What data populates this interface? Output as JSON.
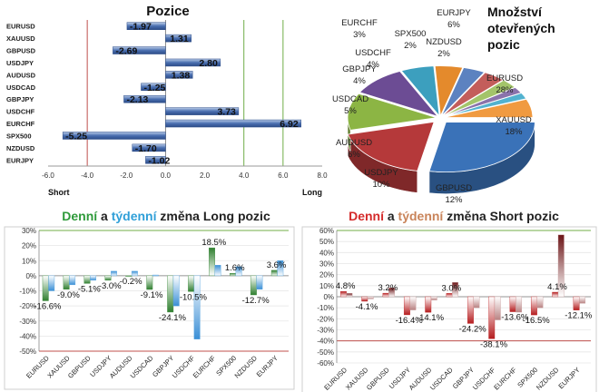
{
  "chart_data": [
    {
      "type": "bar",
      "orientation": "horizontal",
      "title": "Pozice",
      "categories": [
        "EURUSD",
        "XAUUSD",
        "GBPUSD",
        "USDJPY",
        "AUDUSD",
        "USDCAD",
        "GBPJPY",
        "USDCHF",
        "EURCHF",
        "SPX500",
        "NZDUSD",
        "EURJPY"
      ],
      "values": [
        -1.97,
        1.31,
        -2.69,
        2.8,
        1.38,
        -1.25,
        -2.13,
        3.73,
        6.92,
        -5.25,
        -1.7,
        -1.02
      ],
      "value_labels": [
        "-1.97",
        "1.31",
        "-2.69",
        "2.80",
        "1.38",
        "-1.25",
        "-2.13",
        "3.73",
        "6.92",
        "-5.25",
        "-1.70",
        "-1.02"
      ],
      "xlim": [
        -6.0,
        8.0
      ],
      "xticks": [
        "-6.0",
        "-4.0",
        "-2.0",
        "0.0",
        "2.0",
        "4.0",
        "6.0",
        "8.0"
      ],
      "xlabel_left": "Short",
      "xlabel_right": "Long",
      "reference_lines": [
        {
          "value": -4.0,
          "color": "#c0504d"
        },
        {
          "value": 4.0,
          "color": "#70ad47"
        },
        {
          "value": 6.0,
          "color": "#70ad47"
        }
      ],
      "bar_color": "#4a6fb0"
    },
    {
      "type": "pie",
      "title": "Množství otevřených pozic",
      "slices": [
        {
          "label": "EURUSD",
          "pct": "28%",
          "value": 28,
          "color": "#3a72b8"
        },
        {
          "label": "XAUUSD",
          "pct": "18%",
          "value": 18,
          "color": "#b5393a"
        },
        {
          "label": "GBPUSD",
          "pct": "12%",
          "value": 12,
          "color": "#8cb544"
        },
        {
          "label": "USDJPY",
          "pct": "10%",
          "value": 10,
          "color": "#6c4c94"
        },
        {
          "label": "AUDUSD",
          "pct": "6%",
          "value": 6,
          "color": "#3c9fbe"
        },
        {
          "label": "USDCAD",
          "pct": "5%",
          "value": 5,
          "color": "#e48a2c"
        },
        {
          "label": "GBPJPY",
          "pct": "4%",
          "value": 4,
          "color": "#5c82c0"
        },
        {
          "label": "USDCHF",
          "pct": "4%",
          "value": 4,
          "color": "#c35d5b"
        },
        {
          "label": "EURCHF",
          "pct": "3%",
          "value": 3,
          "color": "#a3c46a"
        },
        {
          "label": "SPX500",
          "pct": "2%",
          "value": 2,
          "color": "#8a73ab"
        },
        {
          "label": "NZDUSD",
          "pct": "2%",
          "value": 2,
          "color": "#52b2cf"
        },
        {
          "label": "EURJPY",
          "pct": "6%",
          "value": 6,
          "color": "#f09a40"
        }
      ]
    },
    {
      "type": "bar",
      "title_parts": [
        "Denní",
        " a ",
        "týdenní",
        " změna Long pozic"
      ],
      "title_colors": [
        "#2e9a3a",
        "#222222",
        "#2f9fd8",
        "#222222"
      ],
      "categories": [
        "EURUSD",
        "XAUUSD",
        "GBPUSD",
        "USDJPY",
        "AUDUSD",
        "USDCAD",
        "GBPJPY",
        "USDCHF",
        "EURCHF",
        "SPX500",
        "NZDUSD",
        "EURJPY"
      ],
      "series": [
        {
          "color": "#3c8a3c",
          "values": [
            -16.6,
            -9.0,
            -5.1,
            -3.0,
            -0.2,
            -9.1,
            -24.1,
            -10.5,
            18.5,
            1.6,
            -12.7,
            3.6
          ]
        },
        {
          "color": "#5aa7e0",
          "values": [
            -10,
            -6,
            -3,
            3,
            3,
            0.5,
            -20,
            -42,
            7,
            6,
            -9,
            10
          ]
        }
      ],
      "data_labels": [
        "-16.6%",
        "-9.0%",
        "-5.1%",
        "-3.0%",
        "-0.2%",
        "-9.1%",
        "-24.1%",
        "-10.5%",
        "18.5%",
        "1.6%",
        "-12.7%",
        "3.6%"
      ],
      "ylim": [
        -50,
        30
      ],
      "yticks": [
        "30%",
        "20%",
        "10%",
        "0%",
        "-10%",
        "-20%",
        "-30%",
        "-40%",
        "-50%"
      ],
      "reference_lines": [
        {
          "value": 30,
          "color": "#70ad47"
        },
        {
          "value": -50,
          "color": "#c0504d"
        }
      ]
    },
    {
      "type": "bar",
      "title_parts": [
        "Denní",
        " a ",
        "týdenní",
        " změna Short pozic"
      ],
      "title_colors": [
        "#d42a2a",
        "#222222",
        "#c9845a",
        "#222222"
      ],
      "categories": [
        "EURUSD",
        "XAUUSD",
        "GBPUSD",
        "USDJPY",
        "AUDUSD",
        "USDCAD",
        "GBPJPY",
        "USDCHF",
        "EURCHF",
        "SPX500",
        "NZDUSD",
        "EURJPY"
      ],
      "series": [
        {
          "color": "#c0282a",
          "values": [
            4.8,
            -4.1,
            3.2,
            -16.4,
            -14.1,
            3.0,
            -24.2,
            -38.1,
            -13.6,
            -16.5,
            4.1,
            -12.1
          ]
        },
        {
          "color": "#c9a0a0",
          "values": [
            3,
            -2,
            8,
            -12,
            -3,
            13,
            -10,
            -21,
            -14,
            -10,
            56,
            -6
          ]
        }
      ],
      "data_labels": [
        "4.8%",
        "-4.1%",
        "3.2%",
        "-16.4%",
        "-14.1%",
        "3.0%",
        "-24.2%",
        "-38.1%",
        "-13.6%",
        "-16.5%",
        "4.1%",
        "-12.1%"
      ],
      "ylim": [
        -60,
        60
      ],
      "yticks": [
        "60%",
        "50%",
        "40%",
        "30%",
        "20%",
        "10%",
        "0%",
        "-10%",
        "-20%",
        "-30%",
        "-40%",
        "-50%",
        "-60%"
      ],
      "reference_lines": [
        {
          "value": 60,
          "color": "#70ad47"
        },
        {
          "value": -40,
          "color": "#c0504d"
        }
      ]
    }
  ]
}
